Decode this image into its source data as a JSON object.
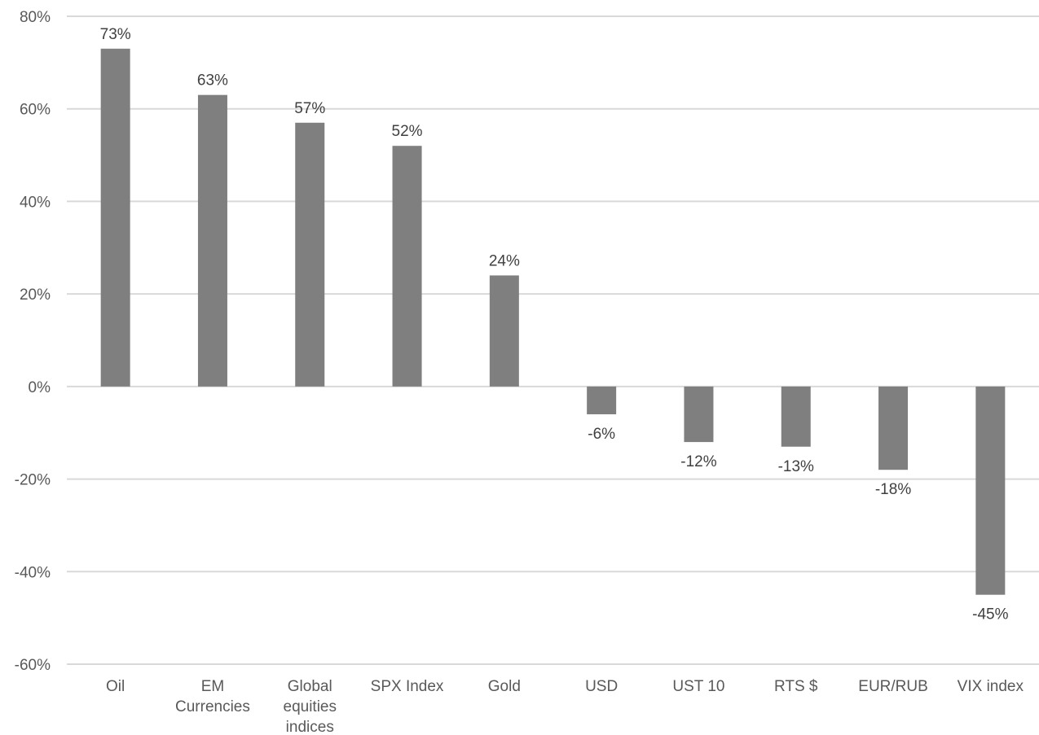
{
  "chart_data": {
    "type": "bar",
    "title": "",
    "xlabel": "",
    "ylabel": "",
    "categories": [
      [
        "Oil"
      ],
      [
        "EM",
        "Currencies"
      ],
      [
        "Global",
        "equities",
        "indices"
      ],
      [
        "SPX Index"
      ],
      [
        "Gold"
      ],
      [
        "USD"
      ],
      [
        "UST 10"
      ],
      [
        "RTS $"
      ],
      [
        "EUR/RUB"
      ],
      [
        "VIX index"
      ]
    ],
    "values": [
      73,
      63,
      57,
      52,
      24,
      -6,
      -12,
      -13,
      -18,
      -45
    ],
    "data_labels": [
      "73%",
      "63%",
      "57%",
      "52%",
      "24%",
      "-6%",
      "-12%",
      "-13%",
      "-18%",
      "-45%"
    ],
    "ylim": [
      -60,
      80
    ],
    "yticks": [
      80,
      60,
      40,
      20,
      0,
      -20,
      -40,
      -60
    ],
    "ytick_labels": [
      "80%",
      "60%",
      "40%",
      "20%",
      "0%",
      "-20%",
      "-40%",
      "-60%"
    ],
    "grid": true,
    "legend": "none",
    "bar_color": "#7f7f7f",
    "grid_color": "#d9d9d9"
  }
}
